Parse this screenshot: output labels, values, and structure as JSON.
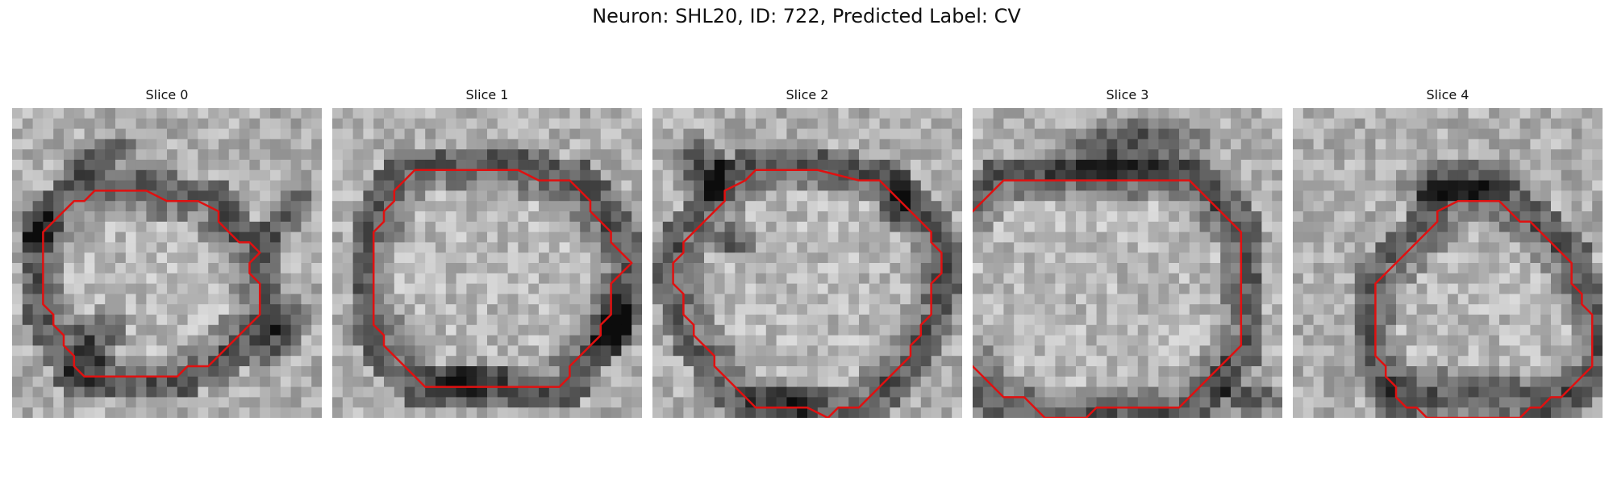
{
  "figure": {
    "title": "Neuron: SHL20, ID: 722, Predicted Label: CV"
  },
  "colors": {
    "contour": "#e01010",
    "background": "#ffffff"
  },
  "panels": [
    {
      "title": "Slice 0",
      "contour_grid": [
        [
          11,
          5
        ],
        [
          14,
          5
        ],
        [
          16,
          6
        ],
        [
          16,
          7
        ],
        [
          17,
          8
        ],
        [
          18,
          9
        ],
        [
          19,
          9
        ],
        [
          20,
          10
        ],
        [
          19,
          11
        ],
        [
          19,
          12
        ],
        [
          20,
          13
        ],
        [
          20,
          16
        ],
        [
          19,
          17
        ],
        [
          18,
          18
        ],
        [
          17,
          19
        ],
        [
          16,
          20
        ],
        [
          15,
          21
        ],
        [
          13,
          21
        ],
        [
          12,
          22
        ],
        [
          9,
          22
        ],
        [
          6,
          22
        ],
        [
          3,
          22
        ],
        [
          2,
          21
        ],
        [
          2,
          20
        ],
        [
          1,
          19
        ],
        [
          1,
          18
        ],
        [
          0,
          17
        ],
        [
          0,
          16
        ],
        [
          -1,
          15
        ],
        [
          -1,
          12
        ],
        [
          -1,
          9
        ],
        [
          -1,
          8
        ],
        [
          0,
          7
        ],
        [
          1,
          6
        ],
        [
          2,
          5
        ],
        [
          3,
          5
        ],
        [
          4,
          4
        ],
        [
          5,
          4
        ],
        [
          6,
          4
        ],
        [
          9,
          4
        ]
      ],
      "blotches": [
        [
          8,
          23,
          5,
          2.6,
          -55
        ],
        [
          26,
          22,
          4.5,
          2.2,
          -60
        ],
        [
          8,
          5,
          5,
          2,
          -30
        ],
        [
          27,
          10,
          4,
          2,
          -40
        ],
        [
          3,
          12,
          2.5,
          2,
          -45
        ]
      ]
    },
    {
      "title": "Slice 1",
      "contour_grid": [
        [
          4,
          2
        ],
        [
          9,
          2
        ],
        [
          14,
          2
        ],
        [
          16,
          3
        ],
        [
          19,
          3
        ],
        [
          20,
          4
        ],
        [
          21,
          5
        ],
        [
          21,
          6
        ],
        [
          22,
          7
        ],
        [
          23,
          8
        ],
        [
          23,
          9
        ],
        [
          24,
          10
        ],
        [
          25,
          11
        ],
        [
          24,
          12
        ],
        [
          23,
          13
        ],
        [
          23,
          14
        ],
        [
          23,
          16
        ],
        [
          22,
          17
        ],
        [
          22,
          18
        ],
        [
          21,
          19
        ],
        [
          20,
          20
        ],
        [
          19,
          21
        ],
        [
          19,
          22
        ],
        [
          18,
          23
        ],
        [
          17,
          23
        ],
        [
          15,
          23
        ],
        [
          12,
          23
        ],
        [
          9,
          23
        ],
        [
          5,
          23
        ],
        [
          4,
          22
        ],
        [
          3,
          21
        ],
        [
          2,
          20
        ],
        [
          1,
          19
        ],
        [
          1,
          18
        ],
        [
          0,
          17
        ],
        [
          0,
          16
        ],
        [
          0,
          13
        ],
        [
          0,
          10
        ],
        [
          0,
          8
        ],
        [
          1,
          7
        ],
        [
          1,
          6
        ],
        [
          2,
          5
        ],
        [
          2,
          4
        ],
        [
          3,
          3
        ]
      ],
      "blotches": [
        [
          28,
          20,
          3,
          3,
          0
        ],
        [
          27,
          22,
          2.2,
          2.4,
          0
        ],
        [
          13,
          26,
          6,
          1.8,
          0
        ]
      ]
    },
    {
      "title": "Slice 2",
      "contour_grid": [
        [
          8,
          2
        ],
        [
          12,
          2
        ],
        [
          16,
          3
        ],
        [
          18,
          3
        ],
        [
          19,
          4
        ],
        [
          20,
          5
        ],
        [
          21,
          6
        ],
        [
          22,
          7
        ],
        [
          23,
          8
        ],
        [
          23,
          9
        ],
        [
          24,
          10
        ],
        [
          24,
          12
        ],
        [
          23,
          13
        ],
        [
          23,
          16
        ],
        [
          22,
          17
        ],
        [
          22,
          18
        ],
        [
          21,
          19
        ],
        [
          21,
          20
        ],
        [
          20,
          21
        ],
        [
          19,
          22
        ],
        [
          18,
          23
        ],
        [
          17,
          24
        ],
        [
          16,
          25
        ],
        [
          14,
          25
        ],
        [
          13,
          26
        ],
        [
          11,
          25
        ],
        [
          10,
          25
        ],
        [
          8,
          25
        ],
        [
          6,
          25
        ],
        [
          5,
          24
        ],
        [
          4,
          23
        ],
        [
          3,
          22
        ],
        [
          2,
          21
        ],
        [
          2,
          20
        ],
        [
          1,
          19
        ],
        [
          0,
          18
        ],
        [
          0,
          17
        ],
        [
          -1,
          16
        ],
        [
          -1,
          14
        ],
        [
          -2,
          13
        ],
        [
          -2,
          11
        ],
        [
          -1,
          10
        ],
        [
          -1,
          9
        ],
        [
          0,
          8
        ],
        [
          1,
          7
        ],
        [
          2,
          6
        ],
        [
          3,
          5
        ],
        [
          3,
          4
        ],
        [
          5,
          3
        ],
        [
          6,
          2
        ]
      ],
      "blotches": [
        [
          13,
          28,
          5,
          2,
          0
        ],
        [
          5,
          6,
          3,
          4,
          -30
        ],
        [
          24,
          9,
          2,
          3,
          0
        ],
        [
          8,
          13,
          2,
          2,
          0
        ]
      ]
    },
    {
      "title": "Slice 3",
      "contour_grid": [
        [
          6,
          3
        ],
        [
          10,
          3
        ],
        [
          14,
          3
        ],
        [
          17,
          3
        ],
        [
          18,
          4
        ],
        [
          19,
          5
        ],
        [
          20,
          6
        ],
        [
          21,
          7
        ],
        [
          22,
          8
        ],
        [
          22,
          12
        ],
        [
          22,
          16
        ],
        [
          22,
          19
        ],
        [
          21,
          20
        ],
        [
          20,
          21
        ],
        [
          19,
          22
        ],
        [
          18,
          23
        ],
        [
          17,
          24
        ],
        [
          16,
          25
        ],
        [
          14,
          25
        ],
        [
          12,
          25
        ],
        [
          10,
          25
        ],
        [
          8,
          25
        ],
        [
          7,
          26
        ],
        [
          5,
          26
        ],
        [
          3,
          26
        ],
        [
          2,
          25
        ],
        [
          1,
          24
        ],
        [
          -1,
          24
        ],
        [
          -2,
          23
        ],
        [
          -3,
          22
        ],
        [
          -4,
          21
        ],
        [
          -5,
          20
        ],
        [
          -6,
          19
        ],
        [
          -7,
          18
        ],
        [
          -7,
          16
        ],
        [
          -7,
          14
        ],
        [
          -7,
          12
        ],
        [
          -7,
          10
        ],
        [
          -6,
          9
        ],
        [
          -6,
          8
        ],
        [
          -5,
          7
        ],
        [
          -4,
          6
        ],
        [
          -3,
          5
        ],
        [
          -2,
          4
        ],
        [
          -1,
          3
        ],
        [
          2,
          3
        ]
      ],
      "blotches": [
        [
          15,
          4,
          9,
          3.5,
          -10
        ],
        [
          27,
          28,
          4,
          2,
          0
        ]
      ]
    },
    {
      "title": "Slice 4",
      "contour_grid": [
        [
          12,
          5
        ],
        [
          16,
          5
        ],
        [
          17,
          6
        ],
        [
          18,
          7
        ],
        [
          19,
          7
        ],
        [
          20,
          8
        ],
        [
          21,
          9
        ],
        [
          22,
          10
        ],
        [
          23,
          11
        ],
        [
          23,
          13
        ],
        [
          24,
          14
        ],
        [
          24,
          15
        ],
        [
          25,
          16
        ],
        [
          25,
          18
        ],
        [
          25,
          20
        ],
        [
          25,
          21
        ],
        [
          24,
          22
        ],
        [
          23,
          23
        ],
        [
          22,
          24
        ],
        [
          21,
          24
        ],
        [
          20,
          25
        ],
        [
          19,
          25
        ],
        [
          18,
          26
        ],
        [
          16,
          26
        ],
        [
          14,
          26
        ],
        [
          11,
          26
        ],
        [
          9,
          26
        ],
        [
          8,
          25
        ],
        [
          7,
          25
        ],
        [
          6,
          24
        ],
        [
          6,
          23
        ],
        [
          5,
          22
        ],
        [
          5,
          21
        ],
        [
          4,
          20
        ],
        [
          4,
          18
        ],
        [
          4,
          16
        ],
        [
          4,
          13
        ],
        [
          5,
          12
        ],
        [
          6,
          11
        ],
        [
          7,
          10
        ],
        [
          8,
          9
        ],
        [
          9,
          8
        ],
        [
          10,
          7
        ],
        [
          10,
          6
        ]
      ],
      "blotches": [
        [
          16,
          7,
          7,
          2.5,
          -5
        ],
        [
          17,
          27,
          10,
          2.2,
          0
        ]
      ]
    }
  ]
}
